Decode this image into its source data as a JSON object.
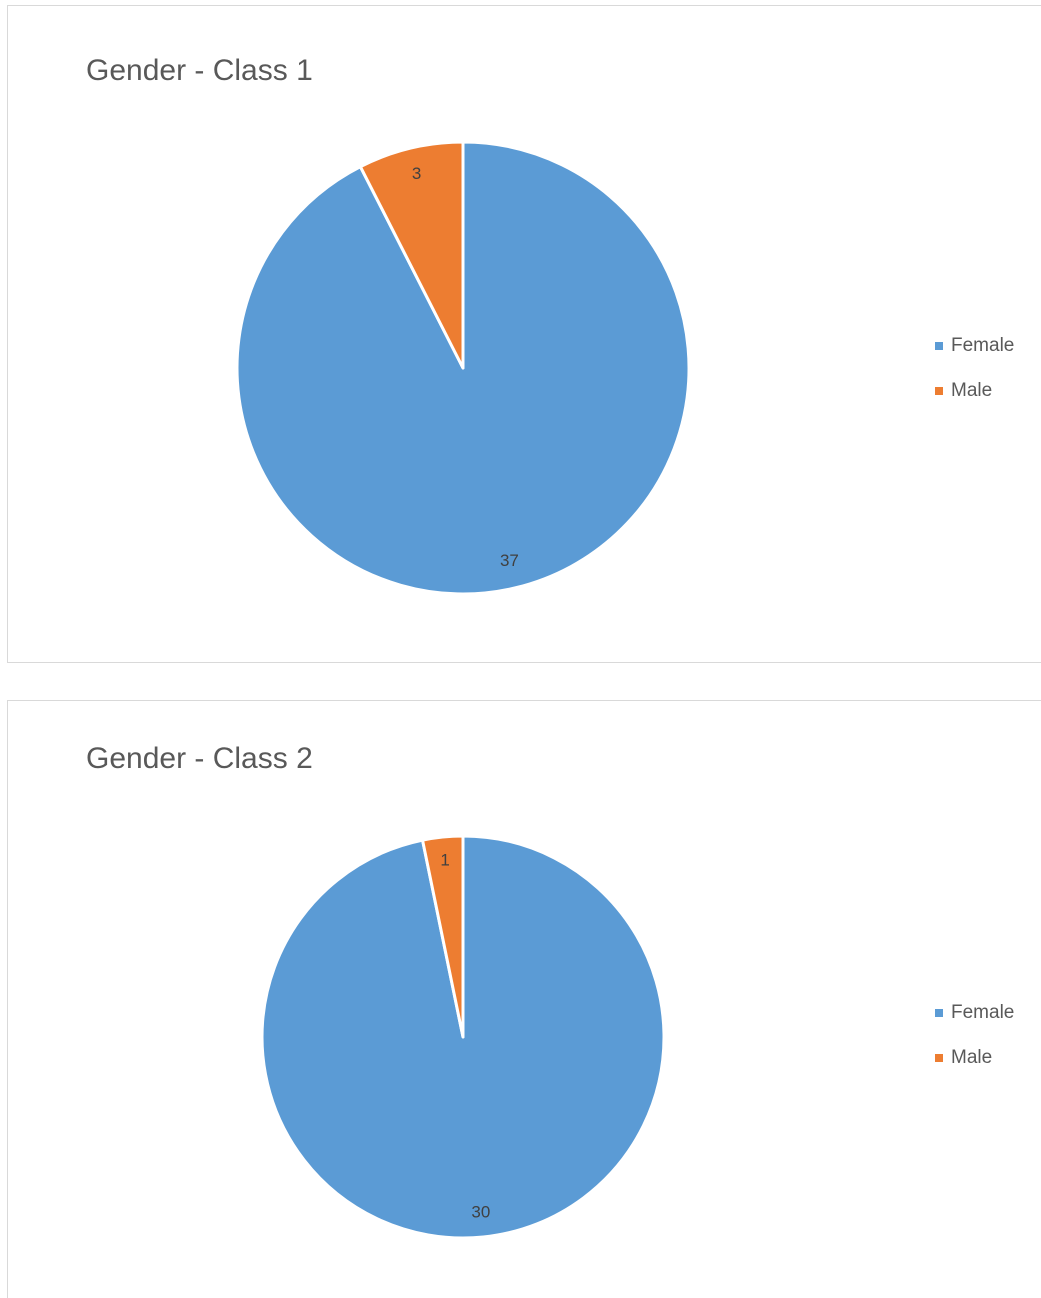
{
  "chart_data": [
    {
      "type": "pie",
      "title": "Gender - Class 1",
      "categories": [
        "Female",
        "Male"
      ],
      "values": [
        37,
        3
      ],
      "colors": [
        "#5b9bd5",
        "#ed7d31"
      ],
      "legend": "right"
    },
    {
      "type": "pie",
      "title": "Gender - Class 2",
      "categories": [
        "Female",
        "Male"
      ],
      "values": [
        30,
        1
      ],
      "colors": [
        "#5b9bd5",
        "#ed7d31"
      ],
      "legend": "right"
    }
  ]
}
